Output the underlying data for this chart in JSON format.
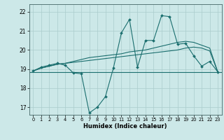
{
  "xlabel": "Humidex (Indice chaleur)",
  "ylabel": "",
  "bg_color": "#cce8e8",
  "grid_color": "#aacccc",
  "line_color": "#1a6e6e",
  "xlim": [
    -0.5,
    23.5
  ],
  "ylim": [
    16.6,
    22.4
  ],
  "xticks": [
    0,
    1,
    2,
    3,
    4,
    5,
    6,
    7,
    8,
    9,
    10,
    11,
    12,
    13,
    14,
    15,
    16,
    17,
    18,
    19,
    20,
    21,
    22,
    23
  ],
  "yticks": [
    17,
    18,
    19,
    20,
    21,
    22
  ],
  "line_zigzag_x": [
    0,
    1,
    2,
    3,
    4,
    5,
    6,
    7,
    8,
    9,
    10,
    11,
    12,
    13,
    14,
    15,
    16,
    17,
    18,
    19,
    20,
    21,
    22,
    23
  ],
  "line_zigzag_y": [
    18.9,
    19.1,
    19.2,
    19.3,
    19.2,
    18.8,
    18.75,
    16.7,
    17.0,
    17.55,
    19.05,
    20.9,
    21.6,
    19.1,
    20.5,
    20.5,
    21.8,
    21.75,
    20.3,
    20.35,
    19.7,
    19.15,
    19.4,
    18.85
  ],
  "line_smooth1_x": [
    0,
    1,
    2,
    3,
    4,
    5,
    6,
    7,
    8,
    9,
    10,
    11,
    12,
    13,
    14,
    15,
    16,
    17,
    18,
    19,
    20,
    21,
    22,
    23
  ],
  "line_smooth1_y": [
    18.9,
    19.05,
    19.15,
    19.25,
    19.3,
    19.35,
    19.4,
    19.45,
    19.5,
    19.55,
    19.6,
    19.65,
    19.7,
    19.75,
    19.8,
    19.85,
    19.9,
    19.95,
    20.0,
    20.1,
    20.15,
    20.1,
    19.95,
    18.85
  ],
  "line_smooth2_x": [
    0,
    1,
    2,
    3,
    4,
    5,
    6,
    7,
    8,
    9,
    10,
    11,
    12,
    13,
    14,
    15,
    16,
    17,
    18,
    19,
    20,
    21,
    22,
    23
  ],
  "line_smooth2_y": [
    18.9,
    19.05,
    19.15,
    19.25,
    19.3,
    19.4,
    19.5,
    19.6,
    19.65,
    19.7,
    19.75,
    19.8,
    19.9,
    19.95,
    20.0,
    20.1,
    20.2,
    20.3,
    20.4,
    20.45,
    20.4,
    20.25,
    20.1,
    18.85
  ],
  "flat_y": 18.85
}
